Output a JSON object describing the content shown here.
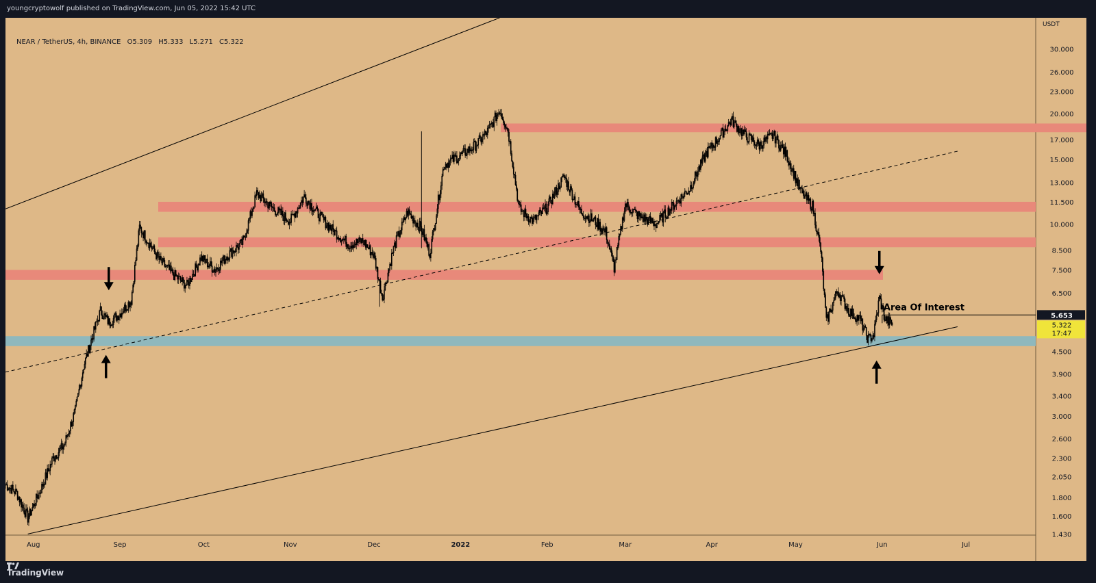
{
  "header": {
    "publish_text": "youngcryptowolf published on TradingView.com, Jun 05, 2022 15:42 UTC"
  },
  "symbol": {
    "name": "NEAR / TetherUS, 4h, BINANCE",
    "open": "O5.309",
    "high": "H5.333",
    "low": "L5.271",
    "close": "C5.322"
  },
  "footer": {
    "brand": "TradingView",
    "logo_icon": "tradingview-logo-icon"
  },
  "colors": {
    "bg": "#deb887",
    "resistance": "#e8897a",
    "support": "#8fb8bd",
    "candle": "#000000",
    "axis_bg": "#deb887",
    "last_price_bg": "#131722",
    "current_price_bg": "#f0e43a"
  },
  "chart_data": {
    "type": "line",
    "scale": "log",
    "currency": "USDT",
    "x_ticks": [
      "Aug",
      "Sep",
      "Oct",
      "Nov",
      "Dec",
      "2022",
      "Feb",
      "Mar",
      "Apr",
      "May",
      "Jun",
      "Jul"
    ],
    "y_ticks": [
      30.0,
      26.0,
      23.0,
      20.0,
      17.0,
      15.0,
      13.0,
      11.5,
      10.0,
      8.5,
      7.5,
      6.5,
      4.5,
      3.9,
      3.4,
      3.0,
      2.6,
      2.3,
      2.05,
      1.8,
      1.6,
      1.43
    ],
    "y_tick_labels": [
      "30.000",
      "26.000",
      "23.000",
      "20.000",
      "17.000",
      "15.000",
      "13.000",
      "11.500",
      "10.000",
      "8.500",
      "7.500",
      "6.500",
      "4.500",
      "3.900",
      "3.400",
      "3.000",
      "2.600",
      "2.300",
      "2.050",
      "1.800",
      "1.600",
      "1.430"
    ],
    "ylim": [
      1.42,
      36.5
    ],
    "price_series": {
      "dates": [
        "2021-07-22",
        "2021-07-26",
        "2021-07-30",
        "2021-08-04",
        "2021-08-08",
        "2021-08-12",
        "2021-08-16",
        "2021-08-19",
        "2021-08-22",
        "2021-08-25",
        "2021-08-28",
        "2021-09-01",
        "2021-09-05",
        "2021-09-08",
        "2021-09-11",
        "2021-09-15",
        "2021-09-20",
        "2021-09-25",
        "2021-09-30",
        "2021-10-05",
        "2021-10-10",
        "2021-10-15",
        "2021-10-20",
        "2021-10-26",
        "2021-11-01",
        "2021-11-06",
        "2021-11-12",
        "2021-11-17",
        "2021-11-22",
        "2021-11-27",
        "2021-12-01",
        "2021-12-04",
        "2021-12-08",
        "2021-12-13",
        "2021-12-18",
        "2021-12-21",
        "2021-12-26",
        "2022-01-01",
        "2022-01-06",
        "2022-01-11",
        "2022-01-15",
        "2022-01-18",
        "2022-01-22",
        "2022-01-27",
        "2022-02-01",
        "2022-02-07",
        "2022-02-13",
        "2022-02-18",
        "2022-02-22",
        "2022-02-25",
        "2022-03-01",
        "2022-03-06",
        "2022-03-12",
        "2022-03-18",
        "2022-03-24",
        "2022-03-30",
        "2022-04-04",
        "2022-04-08",
        "2022-04-13",
        "2022-04-18",
        "2022-04-23",
        "2022-04-28",
        "2022-05-03",
        "2022-05-07",
        "2022-05-10",
        "2022-05-12",
        "2022-05-16",
        "2022-05-20",
        "2022-05-24",
        "2022-05-27",
        "2022-05-29",
        "2022-05-31",
        "2022-06-02",
        "2022-06-05"
      ],
      "close": [
        1.95,
        1.85,
        1.58,
        1.92,
        2.3,
        2.5,
        3.1,
        4.1,
        4.9,
        5.8,
        5.4,
        5.7,
        6.2,
        9.8,
        9.0,
        8.0,
        7.3,
        6.8,
        8.1,
        7.5,
        8.3,
        8.9,
        12.1,
        11.0,
        10.2,
        11.9,
        10.4,
        9.5,
        8.8,
        9.0,
        8.2,
        6.3,
        8.6,
        10.8,
        9.7,
        8.3,
        14.5,
        15.4,
        16.3,
        18.0,
        20.5,
        18.0,
        11.0,
        10.2,
        11.1,
        13.5,
        10.8,
        10.2,
        9.5,
        7.6,
        11.3,
        10.5,
        10.0,
        11.2,
        12.5,
        15.6,
        17.4,
        19.2,
        17.4,
        16.4,
        17.5,
        15.3,
        12.2,
        11.2,
        8.5,
        5.4,
        6.6,
        5.8,
        5.5,
        4.85,
        5.0,
        6.3,
        5.5,
        5.322
      ]
    },
    "resistance_zones": [
      {
        "low": 17.8,
        "high": 18.8
      },
      {
        "low": 10.8,
        "high": 11.5
      },
      {
        "low": 8.65,
        "high": 9.2
      },
      {
        "low": 7.05,
        "high": 7.5
      }
    ],
    "support_zones": [
      {
        "low": 4.65,
        "high": 4.95
      }
    ],
    "channel_upper": {
      "from": {
        "date": "2021-07-22",
        "price": 11.0
      },
      "to": {
        "date": "2022-01-15",
        "price": 36.5
      }
    },
    "channel_lower": {
      "from": {
        "date": "2021-07-30",
        "price": 1.43
      },
      "to": {
        "date": "2022-06-28",
        "price": 5.25
      }
    },
    "midline_dashed": {
      "from": {
        "date": "2021-07-22",
        "price": 3.95
      },
      "to": {
        "date": "2022-06-28",
        "price": 15.8
      }
    },
    "arrows": [
      {
        "direction": "down",
        "date": "2021-08-28",
        "price": 6.6
      },
      {
        "direction": "up",
        "date": "2021-08-27",
        "price": 4.4
      },
      {
        "direction": "down",
        "date": "2022-05-31",
        "price": 7.3
      },
      {
        "direction": "up",
        "date": "2022-05-30",
        "price": 4.25
      }
    ],
    "annotation": {
      "text": "Area Of Interest",
      "date": "2022-06-16",
      "price": 5.653
    },
    "annotation_line": {
      "from": {
        "date": "2022-06-01",
        "price": 5.653
      },
      "to": {
        "date": "2022-06-30",
        "price": 5.653
      }
    },
    "last_price_label": "5.653",
    "current_price_label": "5.322",
    "countdown_label": "17:47"
  }
}
